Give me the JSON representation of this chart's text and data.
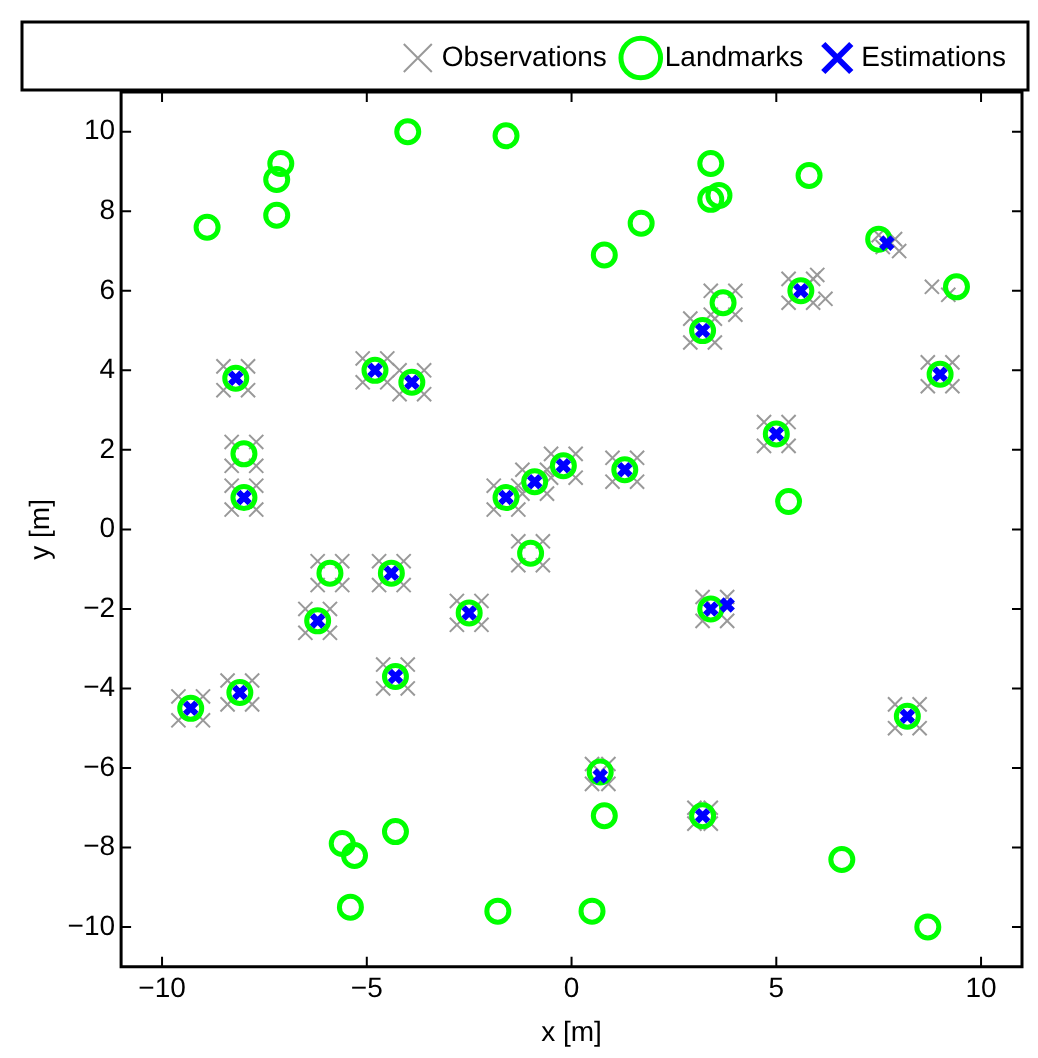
{
  "chart_data": {
    "type": "scatter",
    "xlabel": "x [m]",
    "ylabel": "y [m]",
    "xlim": [
      -11,
      11
    ],
    "ylim": [
      -11,
      11
    ],
    "xticks": [
      {
        "value": -10,
        "label": "−10"
      },
      {
        "value": -5,
        "label": "−5"
      },
      0,
      5,
      10
    ],
    "yticks": [
      {
        "value": -10,
        "label": "−10"
      },
      {
        "value": -8,
        "label": "−8"
      },
      {
        "value": -6,
        "label": "−6"
      },
      {
        "value": -4,
        "label": "−4"
      },
      {
        "value": -2,
        "label": "−2"
      },
      0,
      2,
      4,
      6,
      8,
      10
    ],
    "grid": false,
    "legend": "top",
    "series": [
      {
        "name": "Observations",
        "color": "#999999",
        "marker": "cross",
        "x": [
          -8.5,
          -7.9,
          -8.5,
          -7.9,
          -8.3,
          -7.7,
          -8.3,
          -7.7,
          -8.3,
          -7.7,
          -8.3,
          -7.7,
          -5.1,
          -4.5,
          -5.1,
          -4.5,
          -4.2,
          -3.6,
          -4.2,
          -3.6,
          2.9,
          3.5,
          2.9,
          3.5,
          3.4,
          4.0,
          3.4,
          4.0,
          -1.9,
          -1.3,
          -1.9,
          -1.3,
          -1.2,
          -0.6,
          -1.2,
          -0.6,
          -0.5,
          0.1,
          -0.5,
          0.1,
          1.0,
          1.6,
          1.0,
          1.6,
          5.3,
          5.9,
          5.3,
          5.9,
          8.7,
          9.3,
          8.7,
          9.3,
          4.7,
          5.3,
          4.7,
          5.3,
          -6.2,
          -5.6,
          -6.2,
          -5.6,
          -4.7,
          -4.1,
          -4.7,
          -4.1,
          -6.5,
          -5.9,
          -6.5,
          -5.9,
          -4.6,
          -4.0,
          -4.6,
          -4.0,
          -8.4,
          -7.8,
          -8.4,
          -7.8,
          -9.6,
          -9.0,
          -9.6,
          -9.0,
          -1.3,
          -0.7,
          -1.3,
          -0.7,
          -2.8,
          -2.2,
          -2.8,
          -2.2,
          3.2,
          3.8,
          3.2,
          3.8,
          7.9,
          8.5,
          7.9,
          8.5,
          3.0,
          3.4,
          3.0,
          3.4,
          0.5,
          0.9,
          0.5,
          0.9,
          7.5,
          8.0,
          7.9,
          7.6,
          8.8,
          9.2,
          6.0,
          6.2
        ],
        "values": [
          4.1,
          3.5,
          3.5,
          4.1,
          2.2,
          1.6,
          1.6,
          2.2,
          1.1,
          0.5,
          0.5,
          1.1,
          4.3,
          3.7,
          3.7,
          4.3,
          4.0,
          3.4,
          3.4,
          4.0,
          5.3,
          4.7,
          4.7,
          5.3,
          6.0,
          5.4,
          5.4,
          6.0,
          1.1,
          0.5,
          0.5,
          1.1,
          1.5,
          0.9,
          0.9,
          1.5,
          1.9,
          1.3,
          1.3,
          1.9,
          1.8,
          1.2,
          1.2,
          1.8,
          6.3,
          5.7,
          5.7,
          6.3,
          4.2,
          3.6,
          3.6,
          4.2,
          2.7,
          2.1,
          2.1,
          2.7,
          -0.8,
          -1.4,
          -1.4,
          -0.8,
          -0.8,
          -1.4,
          -1.4,
          -0.8,
          -2.0,
          -2.6,
          -2.6,
          -2.0,
          -3.4,
          -4.0,
          -4.0,
          -3.4,
          -3.8,
          -4.4,
          -4.4,
          -3.8,
          -4.2,
          -4.8,
          -4.8,
          -4.2,
          -0.3,
          -0.9,
          -0.9,
          -0.3,
          -1.8,
          -2.4,
          -2.4,
          -1.8,
          -1.7,
          -2.3,
          -2.3,
          -1.7,
          -4.4,
          -5.0,
          -5.0,
          -4.4,
          -7.0,
          -7.4,
          -7.4,
          -7.0,
          -5.9,
          -6.4,
          -6.4,
          -5.9,
          7.4,
          7.0,
          7.3,
          7.1,
          6.1,
          5.9,
          6.4,
          5.8
        ]
      },
      {
        "name": "Landmarks",
        "color": "#00ff00",
        "marker": "circle",
        "x": [
          -8.9,
          -7.2,
          -7.1,
          -7.2,
          -4.0,
          -1.6,
          3.4,
          3.4,
          3.6,
          1.7,
          0.8,
          5.8,
          7.5,
          5.6,
          9.4,
          3.2,
          3.7,
          -8.2,
          -8.0,
          -8.0,
          -4.8,
          -3.9,
          9.0,
          5.0,
          5.3,
          -1.6,
          -0.9,
          -0.2,
          1.3,
          -1.0,
          -5.9,
          -4.4,
          -6.2,
          -2.5,
          3.4,
          -4.3,
          -8.1,
          -9.3,
          8.2,
          0.7,
          0.8,
          3.2,
          -5.6,
          -5.3,
          -4.3,
          -5.4,
          6.6,
          -1.8,
          0.5,
          8.7
        ],
        "values": [
          7.6,
          8.8,
          9.2,
          7.9,
          10.0,
          9.9,
          9.2,
          8.3,
          8.4,
          7.7,
          6.9,
          8.9,
          7.3,
          6.0,
          6.1,
          5.0,
          5.7,
          3.8,
          1.9,
          0.8,
          4.0,
          3.7,
          3.9,
          2.4,
          0.7,
          0.8,
          1.2,
          1.6,
          1.5,
          -0.6,
          -1.1,
          -1.1,
          -2.3,
          -2.1,
          -2.0,
          -3.7,
          -4.1,
          -4.5,
          -4.7,
          -6.1,
          -7.2,
          -7.2,
          -7.9,
          -8.2,
          -7.6,
          -9.5,
          -8.3,
          -9.6,
          -9.6,
          -10.0
        ]
      },
      {
        "name": "Estimations",
        "color": "#0000ff",
        "marker": "cross",
        "x": [
          -8.2,
          -8.0,
          -4.8,
          -3.9,
          3.2,
          -1.6,
          -0.9,
          -0.2,
          1.3,
          7.7,
          5.6,
          9.0,
          5.0,
          -4.4,
          -6.2,
          -4.3,
          -8.1,
          -9.3,
          -2.5,
          0.7,
          3.2,
          3.4,
          3.8,
          8.2
        ],
        "values": [
          3.8,
          0.8,
          4.0,
          3.7,
          5.0,
          0.8,
          1.2,
          1.6,
          1.5,
          7.2,
          6.0,
          3.9,
          2.4,
          -1.1,
          -2.3,
          -3.7,
          -4.1,
          -4.5,
          -2.1,
          -6.2,
          -7.2,
          -2.0,
          -1.9,
          -4.7
        ]
      }
    ]
  }
}
